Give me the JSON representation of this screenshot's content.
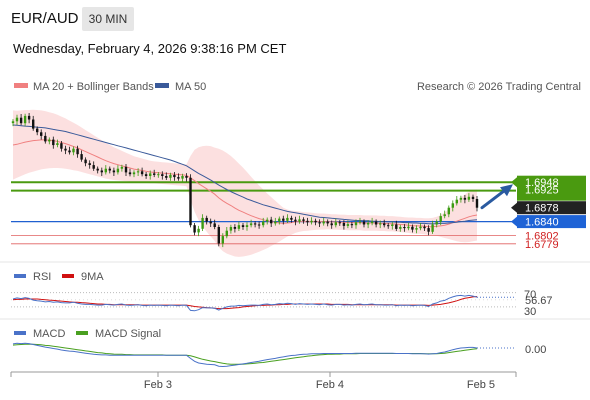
{
  "header": {
    "pair": "EUR/AUD",
    "timeframe": "30 MIN",
    "datetime": "Wednesday, February 4, 2026 9:38:16 PM CET"
  },
  "main_legend": {
    "ma20": "MA 20 + Bollinger Bands",
    "ma50": "MA 50",
    "ma20_color": "#f08080",
    "ma50_color": "#3a5a9a",
    "credit": "Research © 2026 Trading Central"
  },
  "price_levels": [
    {
      "value": 1.6948,
      "label": "1.6948",
      "style": "green-box",
      "line": "green"
    },
    {
      "value": 1.6925,
      "label": "1.6925",
      "style": "green-box",
      "line": "green"
    },
    {
      "value": 1.6878,
      "label": "1.6878",
      "style": "dark-box",
      "line": "none"
    },
    {
      "value": 1.684,
      "label": "1.6840",
      "style": "blue-box",
      "line": "blue"
    },
    {
      "value": 1.6802,
      "label": "1.6802",
      "style": "red-text",
      "line": "red"
    },
    {
      "value": 1.6779,
      "label": "1.6779",
      "style": "red-text",
      "line": "red"
    }
  ],
  "x_axis": {
    "ticks": [
      "Feb 3",
      "Feb 4",
      "Feb 5"
    ]
  },
  "rsi_panel": {
    "legend": [
      "RSI",
      "9MA"
    ],
    "rsi_color": "#4a72c8",
    "ma_color": "#d01010",
    "ticks": [
      "70",
      "30"
    ],
    "value_label": "56.67"
  },
  "macd_panel": {
    "legend": [
      "MACD",
      "MACD Signal"
    ],
    "macd_color": "#4a72c8",
    "signal_color": "#4aa020",
    "value_label": "0.00"
  },
  "chart_data": {
    "type": "candlestick",
    "symbol": "EUR/AUD",
    "interval": "30 MIN",
    "closes": [
      1.7115,
      1.7125,
      1.711,
      1.713,
      1.712,
      1.7095,
      1.7085,
      1.7075,
      1.706,
      1.7065,
      1.705,
      1.7055,
      1.704,
      1.7035,
      1.703,
      1.704,
      1.7025,
      1.701,
      1.7,
      1.6995,
      1.6985,
      1.698,
      1.6975,
      1.6985,
      1.698,
      1.6975,
      1.6985,
      1.699,
      1.6975,
      1.697,
      1.6975,
      1.6978,
      1.697,
      1.6965,
      1.6972,
      1.6968,
      1.697,
      1.6965,
      1.696,
      1.6968,
      1.6962,
      1.6958,
      1.6965,
      1.696,
      1.683,
      1.681,
      1.682,
      1.685,
      1.684,
      1.6835,
      1.6825,
      1.678,
      1.68,
      1.6815,
      1.6825,
      1.682,
      1.683,
      1.6825,
      1.683,
      1.6835,
      1.6832,
      1.683,
      1.684,
      1.6845,
      1.6835,
      1.684,
      1.6848,
      1.6842,
      1.685,
      1.6845,
      1.684,
      1.6846,
      1.6842,
      1.6838,
      1.6842,
      1.6838,
      1.6835,
      1.684,
      1.6835,
      1.683,
      1.6838,
      1.6836,
      1.6828,
      1.6833,
      1.683,
      1.6838,
      1.684,
      1.6832,
      1.6836,
      1.684,
      1.6832,
      1.6835,
      1.683,
      1.6828,
      1.6832,
      1.682,
      1.6825,
      1.6822,
      1.6826,
      1.6818,
      1.6822,
      1.6826,
      1.6822,
      1.6812,
      1.6832,
      1.684,
      1.6855,
      1.686,
      1.6878,
      1.689,
      1.69,
      1.6905,
      1.69,
      1.6908,
      1.6902,
      1.6878
    ],
    "ylim": [
      1.674,
      1.719
    ],
    "ma20": [
      1.705,
      1.7052,
      1.7055,
      1.7058,
      1.706,
      1.7062,
      1.7063,
      1.7064,
      1.7064,
      1.7063,
      1.7062,
      1.706,
      1.7057,
      1.7054,
      1.705,
      1.7046,
      1.7042,
      1.7037,
      1.7032,
      1.7027,
      1.7022,
      1.7017,
      1.7012,
      1.7007,
      1.7003,
      1.6999,
      1.6996,
      1.6993,
      1.699,
      1.6987,
      1.6984,
      1.6982,
      1.698,
      1.6978,
      1.6976,
      1.6975,
      1.6974,
      1.6973,
      1.6972,
      1.6971,
      1.697,
      1.6969,
      1.6968,
      1.6967,
      1.696,
      1.6952,
      1.6944,
      1.6937,
      1.693,
      1.6923,
      1.6915,
      1.6905,
      1.6897,
      1.689,
      1.6884,
      1.6877,
      1.6871,
      1.6866,
      1.6861,
      1.6856,
      1.6852,
      1.6848,
      1.6845,
      1.6842,
      1.684,
      1.6838,
      1.6836,
      1.6835,
      1.6836,
      1.6837,
      1.6839,
      1.684,
      1.684,
      1.684,
      1.684,
      1.684,
      1.684,
      1.684,
      1.684,
      1.6839,
      1.6839,
      1.6838,
      1.6838,
      1.6837,
      1.6837,
      1.6837,
      1.6837,
      1.6836,
      1.6836,
      1.6836,
      1.6836,
      1.6835,
      1.6835,
      1.6834,
      1.6834,
      1.6833,
      1.6832,
      1.6831,
      1.683,
      1.6829,
      1.6828,
      1.6828,
      1.6827,
      1.6826,
      1.6826,
      1.6827,
      1.6828,
      1.683,
      1.6833,
      1.6837,
      1.6841,
      1.6845,
      1.6849,
      1.6853,
      1.6856,
      1.6858
    ],
    "ma50": [
      1.7105,
      1.7104,
      1.7103,
      1.7102,
      1.7101,
      1.71,
      1.7099,
      1.7098,
      1.7097,
      1.7095,
      1.7093,
      1.7091,
      1.7089,
      1.7087,
      1.7084,
      1.7081,
      1.7078,
      1.7075,
      1.7072,
      1.7069,
      1.7066,
      1.7063,
      1.706,
      1.7057,
      1.7054,
      1.7051,
      1.7048,
      1.7045,
      1.7042,
      1.7039,
      1.7036,
      1.7033,
      1.703,
      1.7027,
      1.7024,
      1.7021,
      1.7018,
      1.7015,
      1.7012,
      1.7009,
      1.7005,
      1.7001,
      1.6997,
      1.6993,
      1.6986,
      1.6979,
      1.6972,
      1.6966,
      1.696,
      1.6954,
      1.6947,
      1.694,
      1.6934,
      1.6928,
      1.6922,
      1.6917,
      1.6912,
      1.6907,
      1.6902,
      1.6898,
      1.6894,
      1.689,
      1.6886,
      1.6883,
      1.688,
      1.6877,
      1.6874,
      1.6871,
      1.6868,
      1.6866,
      1.6864,
      1.6862,
      1.686,
      1.6858,
      1.6856,
      1.6854,
      1.6852,
      1.6851,
      1.685,
      1.6849,
      1.6848,
      1.6847,
      1.6846,
      1.6845,
      1.6844,
      1.6843,
      1.6843,
      1.6842,
      1.6842,
      1.6841,
      1.6841,
      1.684,
      1.684,
      1.6839,
      1.6839,
      1.6838,
      1.6838,
      1.6837,
      1.6837,
      1.6836,
      1.6836,
      1.6835,
      1.6835,
      1.6834,
      1.6834,
      1.6834,
      1.6835,
      1.6835,
      1.6836,
      1.6837,
      1.6838,
      1.684,
      1.6841,
      1.6843,
      1.6844,
      1.6845
    ],
    "bollinger_width": [
      0.0095,
      0.0092,
      0.009,
      0.0088,
      0.0086,
      0.0085,
      0.0083,
      0.0081,
      0.0079,
      0.0077,
      0.0075,
      0.0073,
      0.0071,
      0.0069,
      0.0067,
      0.0065,
      0.0063,
      0.0061,
      0.0059,
      0.0057,
      0.0055,
      0.0053,
      0.0051,
      0.0049,
      0.0047,
      0.0045,
      0.0043,
      0.0041,
      0.0039,
      0.0037,
      0.0035,
      0.0034,
      0.0033,
      0.0032,
      0.0031,
      0.003,
      0.003,
      0.003,
      0.003,
      0.003,
      0.003,
      0.003,
      0.003,
      0.003,
      0.006,
      0.0085,
      0.01,
      0.011,
      0.0118,
      0.0124,
      0.0128,
      0.0135,
      0.0138,
      0.0138,
      0.0136,
      0.0133,
      0.0128,
      0.0122,
      0.0115,
      0.0107,
      0.0099,
      0.0091,
      0.0083,
      0.0075,
      0.0067,
      0.0059,
      0.0051,
      0.0043,
      0.0037,
      0.0033,
      0.003,
      0.0028,
      0.0026,
      0.0025,
      0.0024,
      0.0023,
      0.0022,
      0.0022,
      0.0021,
      0.0021,
      0.0021,
      0.0021,
      0.0021,
      0.0021,
      0.0021,
      0.0021,
      0.0021,
      0.0021,
      0.0021,
      0.0021,
      0.0021,
      0.0021,
      0.0021,
      0.0021,
      0.0021,
      0.0021,
      0.0021,
      0.0021,
      0.0021,
      0.0022,
      0.0022,
      0.0022,
      0.0022,
      0.0023,
      0.0024,
      0.0026,
      0.003,
      0.0035,
      0.0041,
      0.0048,
      0.0055,
      0.0061,
      0.0066,
      0.0069,
      0.007,
      0.007
    ],
    "rsi": [
      52,
      55,
      53,
      56,
      54,
      49,
      47,
      46,
      44,
      45,
      43,
      44,
      42,
      41,
      41,
      43,
      40,
      38,
      37,
      37,
      36,
      35,
      35,
      37,
      36,
      35,
      37,
      38,
      35,
      34,
      35,
      36,
      34,
      33,
      35,
      34,
      35,
      34,
      33,
      35,
      34,
      33,
      35,
      34,
      20,
      19,
      22,
      28,
      27,
      27,
      26,
      21,
      26,
      30,
      32,
      32,
      34,
      33,
      34,
      35,
      35,
      34,
      37,
      38,
      36,
      37,
      39,
      38,
      40,
      39,
      37,
      39,
      38,
      37,
      38,
      37,
      36,
      38,
      36,
      35,
      37,
      37,
      35,
      36,
      35,
      37,
      38,
      36,
      37,
      38,
      36,
      36,
      35,
      35,
      36,
      33,
      35,
      34,
      35,
      33,
      34,
      35,
      34,
      31,
      38,
      41,
      46,
      48,
      54,
      58,
      61,
      62,
      60,
      62,
      60,
      57
    ],
    "rsi_ma": [
      50,
      51,
      51,
      52,
      52,
      52,
      52,
      51,
      50,
      49,
      48,
      47,
      46,
      45,
      44,
      43,
      43,
      42,
      41,
      40,
      39,
      38,
      38,
      37,
      37,
      36,
      36,
      36,
      36,
      36,
      36,
      36,
      35,
      35,
      35,
      35,
      35,
      35,
      35,
      35,
      35,
      35,
      35,
      35,
      33,
      31,
      30,
      29,
      28,
      27,
      26,
      25,
      25,
      25,
      26,
      27,
      28,
      30,
      31,
      32,
      33,
      34,
      34,
      35,
      35,
      36,
      36,
      37,
      37,
      38,
      38,
      38,
      38,
      38,
      38,
      38,
      38,
      38,
      38,
      37,
      37,
      37,
      37,
      37,
      36,
      36,
      36,
      36,
      36,
      36,
      36,
      36,
      36,
      36,
      36,
      35,
      35,
      35,
      35,
      35,
      35,
      35,
      35,
      34,
      35,
      36,
      37,
      39,
      41,
      44,
      47,
      51,
      54,
      56,
      58,
      59
    ],
    "macd": [
      0.003,
      0.0032,
      0.0031,
      0.0032,
      0.0031,
      0.0028,
      0.0025,
      0.0022,
      0.0019,
      0.0017,
      0.0014,
      0.0012,
      0.0009,
      0.0007,
      0.0005,
      0.0004,
      0.0002,
      0.0,
      -0.0002,
      -0.0004,
      -0.0006,
      -0.0007,
      -0.0008,
      -0.0008,
      -0.0009,
      -0.0009,
      -0.0009,
      -0.0009,
      -0.0009,
      -0.0009,
      -0.0009,
      -0.0009,
      -0.0009,
      -0.0009,
      -0.0009,
      -0.0009,
      -0.0009,
      -0.0009,
      -0.0009,
      -0.0009,
      -0.0009,
      -0.0009,
      -0.0009,
      -0.0009,
      -0.002,
      -0.003,
      -0.0036,
      -0.0038,
      -0.004,
      -0.0041,
      -0.0042,
      -0.0047,
      -0.0048,
      -0.0047,
      -0.0045,
      -0.0043,
      -0.0041,
      -0.0039,
      -0.0037,
      -0.0034,
      -0.0032,
      -0.003,
      -0.0027,
      -0.0024,
      -0.0022,
      -0.002,
      -0.0017,
      -0.0015,
      -0.0012,
      -0.001,
      -0.0009,
      -0.0007,
      -0.0006,
      -0.0005,
      -0.0004,
      -0.0004,
      -0.0004,
      -0.0003,
      -0.0003,
      -0.0003,
      -0.0003,
      -0.0003,
      -0.0003,
      -0.0003,
      -0.0003,
      -0.0002,
      -0.0002,
      -0.0002,
      -0.0002,
      -0.0002,
      -0.0002,
      -0.0002,
      -0.0002,
      -0.0002,
      -0.0002,
      -0.0003,
      -0.0003,
      -0.0003,
      -0.0003,
      -0.0004,
      -0.0004,
      -0.0004,
      -0.0004,
      -0.0005,
      -0.0004,
      -0.0003,
      0.0,
      0.0002,
      0.0006,
      0.001,
      0.0013,
      0.0016,
      0.0017,
      0.0018,
      0.0018,
      0.0016
    ],
    "macd_signal": [
      0.0026,
      0.0027,
      0.0028,
      0.0029,
      0.0029,
      0.0029,
      0.0028,
      0.0027,
      0.0025,
      0.0024,
      0.0022,
      0.002,
      0.0018,
      0.0016,
      0.0014,
      0.0012,
      0.001,
      0.0008,
      0.0006,
      0.0004,
      0.0002,
      0.0,
      -0.0001,
      -0.0003,
      -0.0004,
      -0.0005,
      -0.0006,
      -0.0006,
      -0.0007,
      -0.0007,
      -0.0008,
      -0.0008,
      -0.0008,
      -0.0008,
      -0.0008,
      -0.0008,
      -0.0008,
      -0.0008,
      -0.0009,
      -0.0009,
      -0.0009,
      -0.0009,
      -0.0009,
      -0.0009,
      -0.0011,
      -0.0015,
      -0.0019,
      -0.0023,
      -0.0026,
      -0.0029,
      -0.0031,
      -0.0034,
      -0.0037,
      -0.0039,
      -0.004,
      -0.004,
      -0.004,
      -0.004,
      -0.0039,
      -0.0038,
      -0.0037,
      -0.0035,
      -0.0034,
      -0.0032,
      -0.003,
      -0.0028,
      -0.0026,
      -0.0024,
      -0.0022,
      -0.002,
      -0.0018,
      -0.0016,
      -0.0014,
      -0.0012,
      -0.0011,
      -0.0009,
      -0.0008,
      -0.0007,
      -0.0006,
      -0.0006,
      -0.0005,
      -0.0005,
      -0.0004,
      -0.0004,
      -0.0004,
      -0.0004,
      -0.0003,
      -0.0003,
      -0.0003,
      -0.0003,
      -0.0003,
      -0.0003,
      -0.0003,
      -0.0003,
      -0.0003,
      -0.0003,
      -0.0003,
      -0.0003,
      -0.0003,
      -0.0003,
      -0.0003,
      -0.0003,
      -0.0004,
      -0.0004,
      -0.0004,
      -0.0004,
      -0.0003,
      -0.0002,
      0.0,
      0.0002,
      0.0004,
      0.0006,
      0.0008,
      0.001,
      0.0012,
      0.0013
    ]
  }
}
